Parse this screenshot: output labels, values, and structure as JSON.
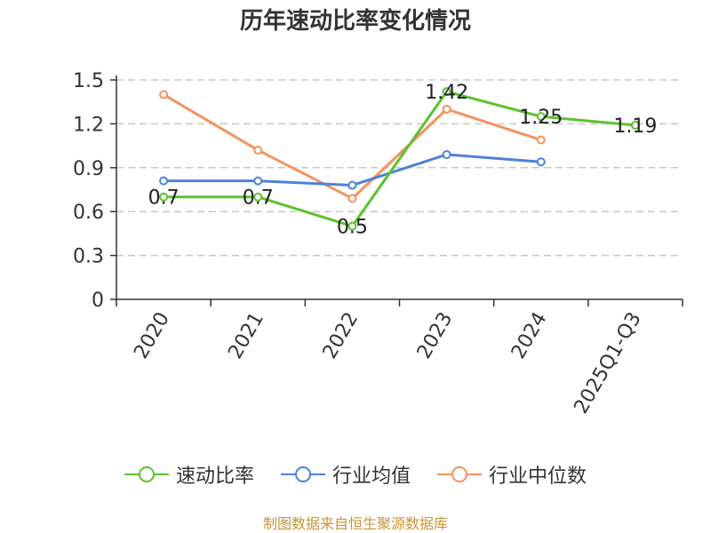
{
  "chart_data": {
    "type": "line",
    "title": "历年速动比率变化情况",
    "categories": [
      "2020",
      "2021",
      "2022",
      "2023",
      "2024",
      "2025Q1-Q3"
    ],
    "ylim": [
      0,
      1.5
    ],
    "yticks": [
      "0",
      "0.3",
      "0.6",
      "0.9",
      "1.2",
      "1.5"
    ],
    "grid": true,
    "legend_position": "bottom",
    "series": [
      {
        "name": "速动比率",
        "color": "#5cc22d",
        "values": [
          0.7,
          0.7,
          0.5,
          1.42,
          1.25,
          1.19
        ],
        "labels": [
          "0.7",
          "0.7",
          "0.5",
          "1.42",
          "1.25",
          "1.19"
        ]
      },
      {
        "name": "行业均值",
        "color": "#4e82d8",
        "values": [
          0.81,
          0.81,
          0.78,
          0.99,
          0.94,
          null
        ]
      },
      {
        "name": "行业中位数",
        "color": "#f5925e",
        "values": [
          1.4,
          1.02,
          0.69,
          1.3,
          1.09,
          null
        ]
      }
    ]
  },
  "source": "制图数据来自恒生聚源数据库"
}
